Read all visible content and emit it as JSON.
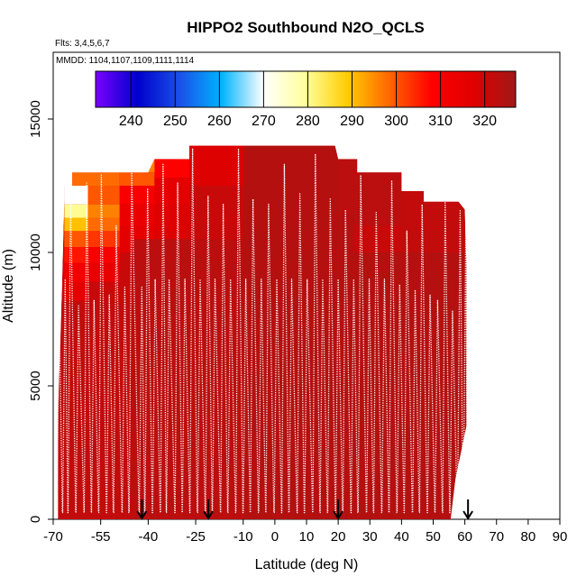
{
  "chart_data": {
    "type": "heatmap",
    "title": "HIPPO2 Southbound N2O_QCLS",
    "flights_label": "Flts: 3,4,5,6,7",
    "mmdd_label": "MMDD: 1104,1107,1109,1111,1114",
    "xlabel": "Latitude (deg N)",
    "ylabel": "Altitude (m)",
    "xlim": [
      -70,
      90
    ],
    "ylim": [
      0,
      17500
    ],
    "x_tick_labels": [
      "-70",
      "-55",
      "-40",
      "-25",
      "-10",
      "0",
      "10",
      "20",
      "30",
      "40",
      "50",
      "60",
      "70",
      "80",
      "90"
    ],
    "y_tick_labels": [
      "0",
      "5000",
      "10000",
      "15000"
    ],
    "colorbar": {
      "range": [
        232,
        327
      ],
      "tick_labels": [
        "240",
        "250",
        "260",
        "270",
        "280",
        "290",
        "300",
        "310",
        "320"
      ],
      "colors": [
        "#7a00ff",
        "#0000cc",
        "#1a50e8",
        "#00b4ff",
        "#ffffff",
        "#ffff9c",
        "#ffcc00",
        "#ff6600",
        "#ff0000",
        "#e00000",
        "#a01818"
      ]
    },
    "arrows_lat": [
      -42,
      -21,
      20,
      61
    ],
    "field": {
      "base_value": 321,
      "boundary": [
        [
          -68.5,
          0
        ],
        [
          -68.5,
          4000
        ],
        [
          -67.5,
          7500
        ],
        [
          -66.5,
          12000
        ],
        [
          -66.5,
          12500
        ],
        [
          -64,
          12500
        ],
        [
          -64,
          13000
        ],
        [
          -40,
          13000
        ],
        [
          -38,
          13500
        ],
        [
          -27,
          13500
        ],
        [
          -27,
          14000
        ],
        [
          19,
          14000
        ],
        [
          20,
          13500
        ],
        [
          26,
          13500
        ],
        [
          26,
          13000
        ],
        [
          40,
          13000
        ],
        [
          40,
          12300
        ],
        [
          47,
          12300
        ],
        [
          47,
          11900
        ],
        [
          58,
          11900
        ],
        [
          60,
          11600
        ],
        [
          60.5,
          9500
        ],
        [
          60.5,
          3500
        ],
        [
          57,
          1500
        ],
        [
          56,
          500
        ],
        [
          55.5,
          0
        ]
      ],
      "cells": [
        {
          "x": [
            -66.5,
            -59
          ],
          "y": [
            11800,
            12500
          ],
          "value": 270
        },
        {
          "x": [
            -66.5,
            -59
          ],
          "y": [
            11300,
            11800
          ],
          "value": 280
        },
        {
          "x": [
            -66.5,
            -59
          ],
          "y": [
            10800,
            11300
          ],
          "value": 290
        },
        {
          "x": [
            -66.5,
            -59
          ],
          "y": [
            10200,
            10800
          ],
          "value": 300
        },
        {
          "x": [
            -66.5,
            -59
          ],
          "y": [
            9600,
            10200
          ],
          "value": 306
        },
        {
          "x": [
            -66.5,
            -59
          ],
          "y": [
            8900,
            9600
          ],
          "value": 312
        },
        {
          "x": [
            -66.5,
            -59
          ],
          "y": [
            8200,
            8900
          ],
          "value": 316
        },
        {
          "x": [
            -59,
            -49
          ],
          "y": [
            11800,
            12500
          ],
          "value": 300
        },
        {
          "x": [
            -59,
            -49
          ],
          "y": [
            11300,
            11800
          ],
          "value": 296
        },
        {
          "x": [
            -59,
            -49
          ],
          "y": [
            10800,
            11300
          ],
          "value": 298
        },
        {
          "x": [
            -59,
            -49
          ],
          "y": [
            10200,
            10800
          ],
          "value": 303
        },
        {
          "x": [
            -59,
            -49
          ],
          "y": [
            9600,
            10200
          ],
          "value": 310
        },
        {
          "x": [
            -59,
            -49
          ],
          "y": [
            8900,
            9600
          ],
          "value": 315
        },
        {
          "x": [
            -64,
            -49
          ],
          "y": [
            12500,
            13000
          ],
          "value": 298
        },
        {
          "x": [
            -49,
            -38
          ],
          "y": [
            12500,
            13000
          ],
          "value": 300
        },
        {
          "x": [
            -40,
            -30
          ],
          "y": [
            13000,
            13500
          ],
          "value": 296
        },
        {
          "x": [
            -49,
            -38
          ],
          "y": [
            11800,
            12500
          ],
          "value": 310
        },
        {
          "x": [
            -49,
            -38
          ],
          "y": [
            11000,
            11800
          ],
          "value": 314
        },
        {
          "x": [
            -49,
            -38
          ],
          "y": [
            10000,
            11000
          ],
          "value": 316
        },
        {
          "x": [
            -38,
            -27
          ],
          "y": [
            12800,
            13500
          ],
          "value": 308
        },
        {
          "x": [
            -38,
            -27
          ],
          "y": [
            11800,
            12800
          ],
          "value": 316
        },
        {
          "x": [
            -38,
            -27
          ],
          "y": [
            10500,
            11800
          ],
          "value": 318
        },
        {
          "x": [
            -27,
            -10
          ],
          "y": [
            12500,
            14000
          ],
          "value": 318
        },
        {
          "x": [
            -10,
            20
          ],
          "y": [
            11500,
            14000
          ],
          "value": 324
        },
        {
          "x": [
            20,
            40
          ],
          "y": [
            11000,
            13500
          ],
          "value": 323
        },
        {
          "x": [
            40,
            60
          ],
          "y": [
            10000,
            12300
          ],
          "value": 322
        },
        {
          "x": [
            -68.5,
            -45
          ],
          "y": [
            0,
            8200
          ],
          "value": 322
        },
        {
          "x": [
            -45,
            -10
          ],
          "y": [
            0,
            10500
          ],
          "value": 323
        },
        {
          "x": [
            -10,
            25
          ],
          "y": [
            0,
            11500
          ],
          "value": 324
        },
        {
          "x": [
            25,
            61
          ],
          "y": [
            0,
            10000
          ],
          "value": 324
        }
      ]
    },
    "profile_lats": [
      -68.1,
      -66.2,
      -64.5,
      -62.0,
      -59.4,
      -57.1,
      -54.8,
      -52.3,
      -50.1,
      -47.4,
      -45.2,
      -42.0,
      -40.2,
      -37.8,
      -35.3,
      -33.4,
      -30.7,
      -28.4,
      -26.0,
      -23.6,
      -21.1,
      -18.9,
      -16.3,
      -14.0,
      -11.5,
      -9.2,
      -6.9,
      -4.3,
      -2.0,
      0.6,
      3.0,
      5.3,
      7.9,
      10.2,
      12.8,
      15.1,
      17.5,
      20.0,
      22.3,
      24.9,
      27.1,
      29.8,
      32.0,
      34.6,
      36.9,
      39.4,
      41.7,
      44.3,
      46.5,
      49.0,
      51.4,
      53.8,
      56.1,
      58.5,
      60.3
    ],
    "profile_tops": [
      7800,
      9000,
      12300,
      8000,
      12600,
      8200,
      12900,
      8400,
      11000,
      8700,
      13000,
      8700,
      12400,
      9000,
      13300,
      9000,
      12600,
      9000,
      13900,
      9000,
      12100,
      9000,
      11800,
      9000,
      13900,
      9000,
      12000,
      9000,
      11800,
      9000,
      13300,
      9000,
      12200,
      9000,
      13700,
      9000,
      12000,
      9000,
      11600,
      9000,
      12900,
      9000,
      11500,
      9000,
      12700,
      8800,
      10800,
      8600,
      11800,
      8400,
      8200,
      11900,
      7800,
      11600,
      10800
    ]
  }
}
